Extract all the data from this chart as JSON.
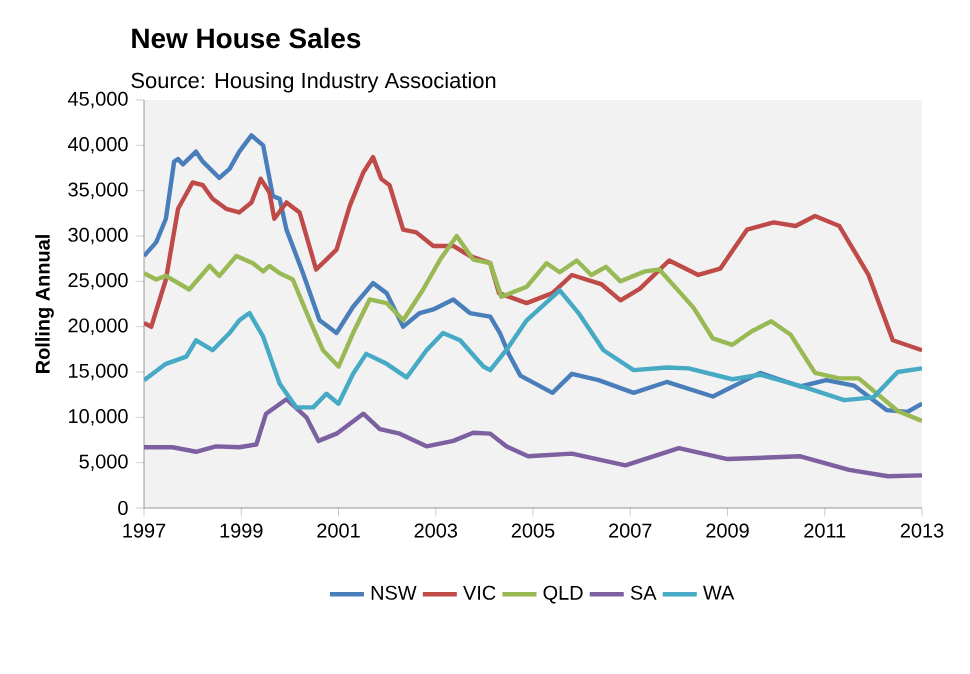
{
  "chart_data": {
    "type": "line",
    "title": "New House Sales",
    "subtitle": "Source: Housing Industry Association",
    "ylabel": "Rolling Annual",
    "xlim": [
      1997,
      2013
    ],
    "xticks": [
      1997,
      1999,
      2001,
      2003,
      2005,
      2007,
      2009,
      2011,
      2013
    ],
    "ylim": [
      0,
      45000
    ],
    "yticks": [
      {
        "value": 0,
        "label": "0"
      },
      {
        "value": 5000,
        "label": "5,000"
      },
      {
        "value": 10000,
        "label": "10,000"
      },
      {
        "value": 15000,
        "label": "15,000"
      },
      {
        "value": 20000,
        "label": "20,000"
      },
      {
        "value": 25000,
        "label": "25,000"
      },
      {
        "value": 30000,
        "label": "30,000"
      },
      {
        "value": 35000,
        "label": "35,000"
      },
      {
        "value": 40000,
        "label": "40,000"
      },
      {
        "value": 45000,
        "label": "45,000"
      }
    ],
    "legend": "bottom",
    "series": [
      {
        "name": "NSW",
        "color": "#4a7ebb",
        "x": [
          1997.0,
          1997.25,
          1997.45,
          1997.62,
          1997.7,
          1997.8,
          1998.07,
          1998.21,
          1998.55,
          1998.76,
          1998.96,
          1999.21,
          1999.45,
          1999.65,
          1999.79,
          1999.93,
          2000.27,
          2000.61,
          2000.96,
          2001.3,
          2001.71,
          2001.99,
          2002.33,
          2002.67,
          2002.95,
          2003.36,
          2003.7,
          2004.12,
          2004.32,
          2004.5,
          2004.74,
          2005.4,
          2005.8,
          2006.35,
          2007.07,
          2007.75,
          2008.7,
          2009.67,
          2010.5,
          2011.03,
          2011.6,
          2012.27,
          2012.7,
          2013.0
        ],
        "values": [
          27800,
          29300,
          31900,
          38200,
          38500,
          37900,
          39300,
          38200,
          36400,
          37400,
          39300,
          41100,
          40000,
          34400,
          34100,
          30700,
          25900,
          20700,
          19300,
          22200,
          24800,
          23700,
          20000,
          21500,
          21900,
          23000,
          21500,
          21100,
          19300,
          17000,
          14600,
          12700,
          14800,
          14100,
          12700,
          13900,
          12300,
          14900,
          13400,
          14100,
          13500,
          10800,
          10600,
          11500
        ]
      },
      {
        "name": "VIC",
        "color": "#be4b48",
        "x": [
          1997.0,
          1997.15,
          1997.45,
          1997.7,
          1998.0,
          1998.21,
          1998.41,
          1998.69,
          1998.96,
          1999.21,
          1999.4,
          1999.58,
          1999.68,
          1999.93,
          2000.2,
          2000.54,
          2000.75,
          2000.96,
          2001.23,
          2001.51,
          2001.71,
          2001.88,
          2002.05,
          2002.33,
          2002.6,
          2002.95,
          2003.36,
          2003.7,
          2004.12,
          2004.3,
          2004.87,
          2005.4,
          2005.8,
          2006.4,
          2006.8,
          2007.2,
          2007.8,
          2008.4,
          2008.85,
          2009.4,
          2009.95,
          2010.4,
          2010.8,
          2011.3,
          2011.9,
          2012.4,
          2013.0
        ],
        "values": [
          20400,
          20000,
          25200,
          33000,
          35900,
          35600,
          34100,
          33000,
          32600,
          33700,
          36300,
          34800,
          31900,
          33700,
          32600,
          26300,
          27400,
          28500,
          33300,
          37000,
          38700,
          36300,
          35600,
          30700,
          30400,
          28900,
          28900,
          27800,
          27000,
          23700,
          22600,
          23700,
          25700,
          24700,
          22900,
          24200,
          27300,
          25700,
          26400,
          30700,
          31500,
          31100,
          32200,
          31100,
          25700,
          18500,
          17400
        ]
      },
      {
        "name": "QLD",
        "color": "#98b954",
        "x": [
          1997.0,
          1997.25,
          1997.45,
          1997.93,
          1998.35,
          1998.55,
          1998.9,
          1999.24,
          1999.45,
          1999.58,
          1999.79,
          2000.06,
          2000.41,
          2000.68,
          2001.0,
          2001.3,
          2001.64,
          2001.99,
          2002.33,
          2002.74,
          2003.09,
          2003.43,
          2003.77,
          2004.12,
          2004.35,
          2004.87,
          2005.28,
          2005.55,
          2005.9,
          2006.2,
          2006.5,
          2006.8,
          2007.3,
          2007.6,
          2008.3,
          2008.7,
          2009.1,
          2009.5,
          2009.9,
          2010.3,
          2010.8,
          2011.3,
          2011.7,
          2012.1,
          2012.5,
          2013.0
        ],
        "values": [
          25900,
          25200,
          25600,
          24100,
          26700,
          25600,
          27800,
          27000,
          26100,
          26700,
          25900,
          25200,
          20700,
          17400,
          15600,
          19300,
          23000,
          22600,
          20700,
          24100,
          27400,
          30000,
          27400,
          27000,
          23300,
          24400,
          27000,
          26000,
          27300,
          25700,
          26600,
          25000,
          26100,
          26300,
          22100,
          18700,
          18000,
          19500,
          20600,
          19100,
          14900,
          14300,
          14300,
          12500,
          10700,
          9600
        ]
      },
      {
        "name": "SA",
        "color": "#7d60a0",
        "x": [
          1997.0,
          1997.59,
          1998.07,
          1998.48,
          1998.96,
          1999.31,
          1999.51,
          1999.93,
          2000.34,
          2000.59,
          2000.96,
          2001.51,
          2001.85,
          2002.26,
          2002.81,
          2003.36,
          2003.77,
          2004.12,
          2004.45,
          2004.9,
          2005.8,
          2006.9,
          2008.0,
          2009.0,
          2010.5,
          2011.5,
          2012.3,
          2013.0
        ],
        "values": [
          6700,
          6700,
          6200,
          6800,
          6700,
          7000,
          10400,
          12000,
          10000,
          7400,
          8200,
          10400,
          8700,
          8200,
          6800,
          7400,
          8300,
          8200,
          6800,
          5700,
          6000,
          4700,
          6600,
          5400,
          5700,
          4200,
          3500,
          3600
        ]
      },
      {
        "name": "WA",
        "color": "#46aac5",
        "x": [
          1997.0,
          1997.45,
          1997.87,
          1998.07,
          1998.41,
          1998.76,
          1998.96,
          1999.17,
          1999.45,
          1999.79,
          2000.13,
          2000.48,
          2000.75,
          2001.0,
          2001.3,
          2001.57,
          2001.99,
          2002.4,
          2002.81,
          2003.15,
          2003.5,
          2003.98,
          2004.12,
          2004.45,
          2004.87,
          2005.55,
          2005.95,
          2006.45,
          2007.07,
          2007.75,
          2008.2,
          2009.1,
          2009.67,
          2010.6,
          2011.4,
          2012.0,
          2012.5,
          2013.0
        ],
        "values": [
          14100,
          15900,
          16700,
          18500,
          17400,
          19300,
          20700,
          21500,
          18900,
          13700,
          11100,
          11100,
          12600,
          11500,
          14800,
          17000,
          15900,
          14400,
          17400,
          19300,
          18500,
          15600,
          15200,
          17400,
          20700,
          24000,
          21400,
          17400,
          15200,
          15500,
          15400,
          14200,
          14700,
          13300,
          11900,
          12200,
          15000,
          15400
        ]
      }
    ]
  }
}
